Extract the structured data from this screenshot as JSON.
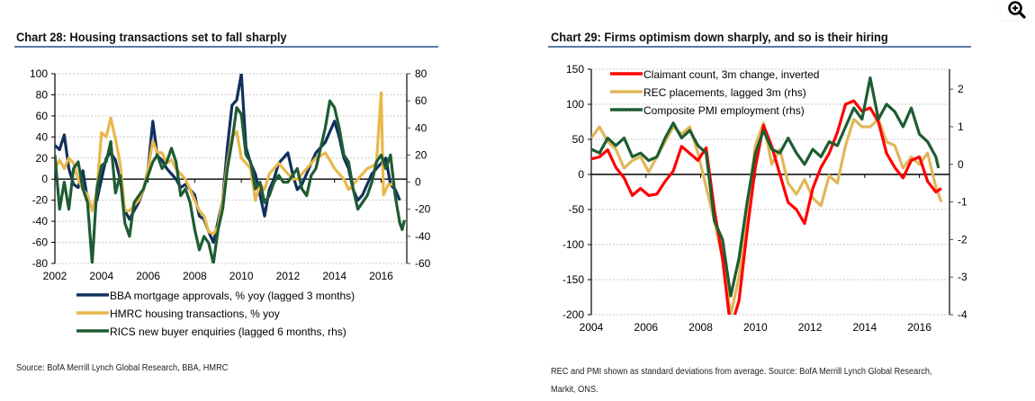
{
  "zoom_button": {
    "icon": "zoom-in-icon",
    "label": "Zoom in"
  },
  "chart_data": [
    {
      "type": "line",
      "title": "Chart 28: Housing transactions set to fall sharply",
      "source": "Source: BofA Merrill Lynch Global Research, BBA, HMRC",
      "xlabel": "",
      "ylabel": "",
      "xlim": [
        2002,
        2017.1
      ],
      "ylim": [
        -80,
        100
      ],
      "y2lim": [
        -60,
        80
      ],
      "x_ticks": [
        "2002",
        "2004",
        "2006",
        "2008",
        "2010",
        "2012",
        "2014",
        "2016"
      ],
      "y_ticks": [
        "100",
        "80",
        "60",
        "40",
        "20",
        "0",
        "-20",
        "-40",
        "-60",
        "-80"
      ],
      "y2_ticks": [
        "80",
        "60",
        "40",
        "20",
        "0",
        "-20",
        "-40",
        "-60"
      ],
      "grid": true,
      "legend_position": "bottom",
      "series": [
        {
          "name": "BBA mortgage approvals, % yoy (lagged 3 months)",
          "axis": "left",
          "color": "#12305e",
          "x": [
            2002.0,
            2002.2,
            2002.4,
            2002.6,
            2002.8,
            2003.0,
            2003.2,
            2003.4,
            2003.6,
            2003.8,
            2004.0,
            2004.2,
            2004.4,
            2004.6,
            2004.8,
            2005.0,
            2005.2,
            2005.4,
            2005.6,
            2005.8,
            2006.0,
            2006.2,
            2006.4,
            2006.6,
            2006.8,
            2007.0,
            2007.2,
            2007.4,
            2007.6,
            2007.8,
            2008.0,
            2008.2,
            2008.4,
            2008.6,
            2008.8,
            2009.0,
            2009.2,
            2009.4,
            2009.6,
            2009.8,
            2010.0,
            2010.2,
            2010.4,
            2010.6,
            2010.8,
            2011.0,
            2011.2,
            2011.4,
            2011.6,
            2011.8,
            2012.0,
            2012.2,
            2012.4,
            2012.6,
            2012.8,
            2013.0,
            2013.2,
            2013.4,
            2013.6,
            2013.8,
            2014.0,
            2014.2,
            2014.4,
            2014.6,
            2014.8,
            2015.0,
            2015.2,
            2015.4,
            2015.6,
            2015.8,
            2016.0,
            2016.2,
            2016.4,
            2016.6,
            2016.8
          ],
          "values": [
            32,
            28,
            42,
            10,
            -5,
            -8,
            8,
            -20,
            -28,
            -20,
            0,
            20,
            25,
            18,
            0,
            -30,
            -38,
            -30,
            -22,
            -10,
            10,
            55,
            22,
            18,
            10,
            5,
            0,
            -8,
            -5,
            -10,
            -15,
            -35,
            -38,
            -50,
            -60,
            -40,
            -20,
            30,
            70,
            75,
            100,
            30,
            15,
            5,
            -15,
            -35,
            -10,
            0,
            15,
            20,
            25,
            5,
            -10,
            -5,
            5,
            15,
            25,
            30,
            35,
            45,
            55,
            40,
            20,
            10,
            -10,
            -20,
            -15,
            -5,
            5,
            10,
            15,
            20,
            -5,
            -10,
            -20
          ]
        },
        {
          "name": "HMRC housing transactions, % yoy",
          "axis": "left",
          "color": "#e8b84c",
          "x": [
            2002.0,
            2002.2,
            2002.4,
            2002.6,
            2002.8,
            2003.0,
            2003.2,
            2003.4,
            2003.6,
            2003.8,
            2004.0,
            2004.2,
            2004.4,
            2004.6,
            2004.8,
            2005.0,
            2005.2,
            2005.4,
            2005.6,
            2005.8,
            2006.0,
            2006.2,
            2006.4,
            2006.6,
            2006.8,
            2007.0,
            2007.2,
            2007.4,
            2007.6,
            2007.8,
            2008.0,
            2008.2,
            2008.4,
            2008.6,
            2008.8,
            2009.0,
            2009.2,
            2009.4,
            2009.6,
            2009.8,
            2010.0,
            2010.2,
            2010.4,
            2010.6,
            2010.8,
            2011.0,
            2011.2,
            2011.4,
            2011.6,
            2011.8,
            2012.0,
            2012.2,
            2012.4,
            2012.6,
            2012.8,
            2013.0,
            2013.2,
            2013.4,
            2013.6,
            2013.8,
            2014.0,
            2014.2,
            2014.4,
            2014.6,
            2014.8,
            2015.0,
            2015.2,
            2015.4,
            2015.6,
            2015.8,
            2016.0,
            2016.1,
            2016.2,
            2016.3,
            2016.5
          ],
          "values": [
            10,
            18,
            10,
            20,
            15,
            0,
            -10,
            -15,
            -30,
            -12,
            44,
            40,
            58,
            38,
            15,
            -30,
            -30,
            -25,
            -20,
            -10,
            10,
            36,
            25,
            25,
            15,
            18,
            10,
            5,
            0,
            -10,
            -20,
            -30,
            -35,
            -50,
            -52,
            -45,
            -20,
            15,
            40,
            45,
            20,
            15,
            10,
            -20,
            -5,
            -10,
            5,
            10,
            15,
            10,
            5,
            0,
            0,
            5,
            10,
            15,
            20,
            22,
            25,
            18,
            10,
            5,
            0,
            -10,
            -5,
            0,
            5,
            10,
            12,
            15,
            82,
            -15,
            -10,
            -5,
            -5
          ]
        },
        {
          "name": "RICS new buyer enquiries (lagged 6 months, rhs)",
          "axis": "right",
          "color": "#1e5c32",
          "x": [
            2002.0,
            2002.2,
            2002.4,
            2002.6,
            2002.8,
            2003.0,
            2003.2,
            2003.4,
            2003.6,
            2003.8,
            2004.0,
            2004.2,
            2004.4,
            2004.6,
            2004.8,
            2005.0,
            2005.2,
            2005.4,
            2005.6,
            2005.8,
            2006.0,
            2006.2,
            2006.4,
            2006.6,
            2006.8,
            2007.0,
            2007.2,
            2007.4,
            2007.6,
            2007.8,
            2008.0,
            2008.2,
            2008.4,
            2008.6,
            2008.8,
            2009.0,
            2009.2,
            2009.4,
            2009.6,
            2009.8,
            2010.0,
            2010.2,
            2010.4,
            2010.6,
            2010.8,
            2011.0,
            2011.2,
            2011.4,
            2011.6,
            2011.8,
            2012.0,
            2012.2,
            2012.4,
            2012.6,
            2012.8,
            2013.0,
            2013.2,
            2013.4,
            2013.6,
            2013.8,
            2014.0,
            2014.2,
            2014.4,
            2014.6,
            2014.8,
            2015.0,
            2015.2,
            2015.4,
            2015.6,
            2015.8,
            2016.0,
            2016.2,
            2016.4,
            2016.6,
            2016.8,
            2016.9,
            2017.0
          ],
          "values": [
            20,
            -20,
            0,
            -20,
            10,
            15,
            -5,
            -15,
            -60,
            -5,
            12,
            15,
            30,
            -8,
            5,
            -30,
            -40,
            -15,
            -10,
            -5,
            5,
            15,
            20,
            10,
            15,
            25,
            15,
            -10,
            -5,
            -15,
            -35,
            -50,
            -40,
            -45,
            -60,
            -35,
            -20,
            10,
            30,
            55,
            50,
            20,
            15,
            -5,
            0,
            -15,
            -10,
            0,
            5,
            0,
            0,
            5,
            10,
            -5,
            -10,
            5,
            10,
            25,
            40,
            60,
            55,
            40,
            20,
            15,
            -5,
            -20,
            -15,
            -10,
            0,
            15,
            20,
            10,
            20,
            -10,
            -30,
            -35,
            -28
          ]
        }
      ]
    },
    {
      "type": "line",
      "title": "Chart 29: Firms optimism down sharply, and so is their hiring",
      "source_line1": "REC and PMI shown as standard deviations from average. Source: BofA Merrill Lynch Global Research,",
      "source_line2": "Markit, ONS.",
      "xlabel": "",
      "ylabel": "",
      "xlim": [
        2004,
        2017.1
      ],
      "ylim": [
        -200,
        150
      ],
      "y2lim": [
        -4,
        2.53
      ],
      "x_ticks": [
        "2004",
        "2006",
        "2008",
        "2010",
        "2012",
        "2014",
        "2016"
      ],
      "y_ticks": [
        "150",
        "100",
        "50",
        "0",
        "-50",
        "-100",
        "-150",
        "-200"
      ],
      "y2_ticks": [
        "2",
        "1",
        "0",
        "-1",
        "-2",
        "-3",
        "-4"
      ],
      "grid": true,
      "legend_position": "top-left",
      "series": [
        {
          "name": "Claimant count, 3m change, inverted",
          "axis": "left",
          "color": "#ff0000",
          "x": [
            2004.0,
            2004.3,
            2004.6,
            2004.9,
            2005.2,
            2005.5,
            2005.8,
            2006.1,
            2006.4,
            2006.7,
            2007.0,
            2007.3,
            2007.6,
            2007.9,
            2008.2,
            2008.5,
            2008.8,
            2009.1,
            2009.4,
            2009.7,
            2010.0,
            2010.3,
            2010.6,
            2010.9,
            2011.2,
            2011.5,
            2011.8,
            2012.1,
            2012.4,
            2012.7,
            2013.0,
            2013.3,
            2013.6,
            2013.9,
            2014.2,
            2014.5,
            2014.8,
            2015.1,
            2015.4,
            2015.7,
            2016.0,
            2016.3,
            2016.6,
            2016.8
          ],
          "values": [
            22,
            25,
            35,
            10,
            -5,
            -30,
            -20,
            -30,
            -28,
            -10,
            5,
            40,
            30,
            20,
            38,
            -50,
            -120,
            -220,
            -180,
            -80,
            10,
            70,
            40,
            0,
            -40,
            -50,
            -70,
            -20,
            10,
            30,
            60,
            100,
            105,
            90,
            95,
            75,
            30,
            10,
            -5,
            20,
            25,
            -10,
            -25,
            -20
          ]
        },
        {
          "name": "REC placements, lagged 3m (rhs)",
          "axis": "right",
          "color": "#e0b85a",
          "x": [
            2004.0,
            2004.3,
            2004.6,
            2004.9,
            2005.2,
            2005.5,
            2005.8,
            2006.1,
            2006.4,
            2006.7,
            2007.0,
            2007.3,
            2007.6,
            2007.9,
            2008.2,
            2008.5,
            2008.8,
            2009.1,
            2009.4,
            2009.7,
            2010.0,
            2010.3,
            2010.6,
            2010.9,
            2011.2,
            2011.5,
            2011.8,
            2012.1,
            2012.4,
            2012.7,
            2013.0,
            2013.3,
            2013.6,
            2013.9,
            2014.2,
            2014.5,
            2014.8,
            2015.1,
            2015.4,
            2015.7,
            2016.0,
            2016.3,
            2016.6,
            2016.8
          ],
          "values": [
            0.7,
            1.0,
            0.6,
            0.4,
            -0.1,
            0.1,
            0.2,
            -0.2,
            0.2,
            0.6,
            1.0,
            0.8,
            1.0,
            0.3,
            -0.6,
            -1.5,
            -2.5,
            -4.0,
            -3.0,
            -1.2,
            0.5,
            1.1,
            0.0,
            0.4,
            -0.5,
            -0.8,
            -0.4,
            -0.9,
            -1.1,
            -0.3,
            -0.5,
            0.5,
            1.2,
            1.0,
            1.0,
            1.2,
            0.6,
            0.5,
            -0.1,
            0.2,
            0.0,
            0.3,
            -0.6,
            -1.0
          ]
        },
        {
          "name": "Composite PMI employment (rhs)",
          "axis": "right",
          "color": "#1e5c32",
          "x": [
            2004.0,
            2004.3,
            2004.6,
            2004.9,
            2005.2,
            2005.5,
            2005.8,
            2006.1,
            2006.4,
            2006.7,
            2007.0,
            2007.3,
            2007.6,
            2007.9,
            2008.2,
            2008.5,
            2008.8,
            2009.1,
            2009.4,
            2009.7,
            2010.0,
            2010.3,
            2010.6,
            2010.9,
            2011.2,
            2011.5,
            2011.8,
            2012.1,
            2012.4,
            2012.7,
            2013.0,
            2013.3,
            2013.6,
            2013.9,
            2014.2,
            2014.5,
            2014.8,
            2015.1,
            2015.4,
            2015.7,
            2016.0,
            2016.3,
            2016.6,
            2016.7
          ],
          "values": [
            0.4,
            0.3,
            0.7,
            0.5,
            0.7,
            0.2,
            0.3,
            0.1,
            0.2,
            0.7,
            1.1,
            0.7,
            0.9,
            0.5,
            0.3,
            -1.5,
            -2.0,
            -3.5,
            -2.5,
            -1.0,
            0.3,
            0.9,
            0.4,
            0.3,
            0.7,
            0.3,
            0.0,
            0.4,
            0.2,
            0.6,
            0.5,
            1.0,
            1.5,
            1.2,
            2.3,
            1.2,
            1.6,
            1.4,
            1.0,
            1.5,
            0.8,
            0.6,
            0.2,
            -0.1
          ]
        }
      ]
    }
  ]
}
